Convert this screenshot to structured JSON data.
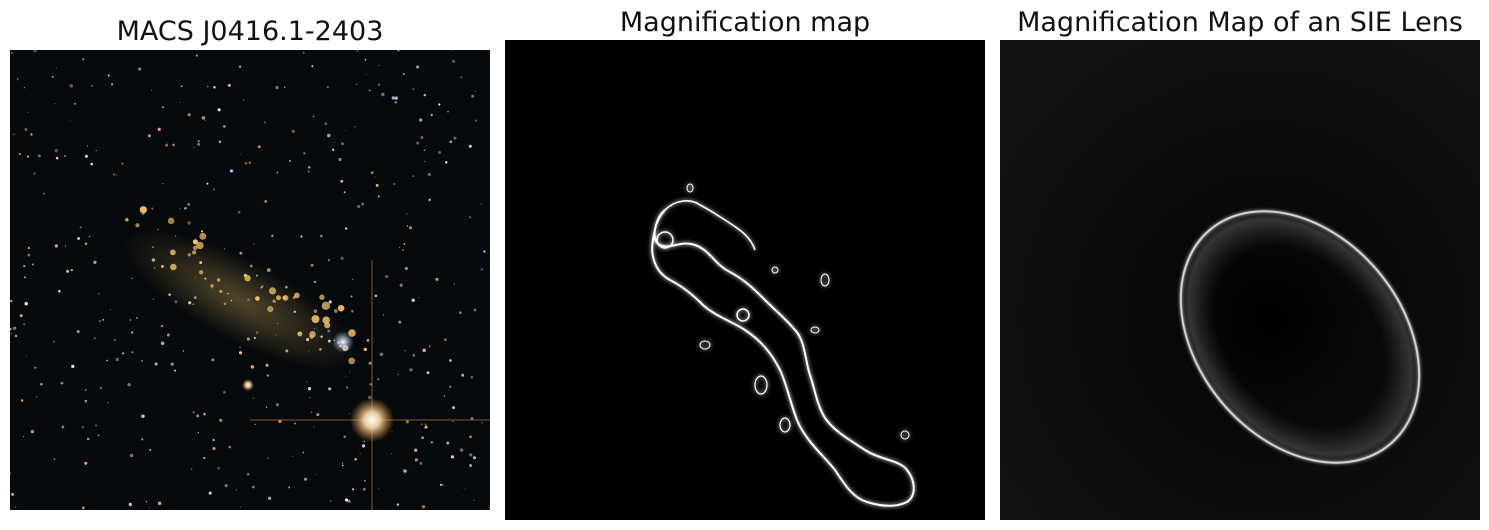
{
  "figure": {
    "panels": [
      {
        "title": "MACS J0416.1-2403",
        "subject": "galaxy cluster field",
        "colors": {
          "background": "#070a0c",
          "glow": "#f1c76a",
          "star": "#ffe0b0"
        }
      },
      {
        "title": "Magnification map",
        "subject": "critical curve of cluster lens",
        "colors": {
          "background": "#000000",
          "curve": "#ffffff"
        }
      },
      {
        "title": "Magnification Map of an SIE Lens",
        "subject": "elliptical critical curve",
        "colors": {
          "background": "#0d0d0d",
          "curve": "#d8d8d8"
        }
      }
    ]
  }
}
